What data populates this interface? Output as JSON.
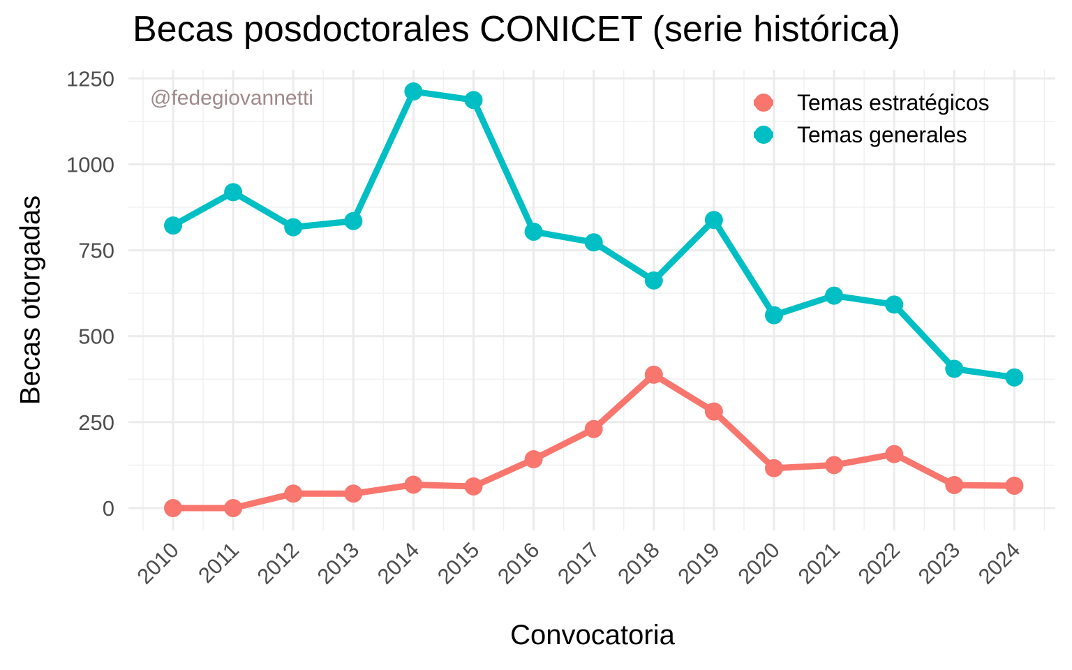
{
  "chart_data": {
    "type": "line",
    "title": "Becas posdoctorales CONICET (serie histórica)",
    "xlabel": "Convocatoria",
    "ylabel": "Becas otorgadas",
    "watermark": "@fedegiovannetti",
    "categories": [
      "2010",
      "2011",
      "2012",
      "2013",
      "2014",
      "2015",
      "2016",
      "2017",
      "2018",
      "2019",
      "2020",
      "2021",
      "2022",
      "2023",
      "2024"
    ],
    "y_ticks": [
      0,
      250,
      500,
      750,
      1000,
      1250
    ],
    "ylim": [
      -65,
      1275
    ],
    "grid": true,
    "legend_position": "top-right",
    "series": [
      {
        "name": "Temas estratégicos",
        "color": "#F8766D",
        "values": [
          0,
          0,
          42,
          42,
          68,
          63,
          142,
          230,
          388,
          281,
          116,
          125,
          157,
          67,
          65
        ]
      },
      {
        "name": "Temas generales",
        "color": "#00BFC4",
        "values": [
          822,
          919,
          817,
          835,
          1212,
          1187,
          804,
          773,
          662,
          838,
          561,
          618,
          592,
          405,
          380
        ]
      }
    ]
  }
}
